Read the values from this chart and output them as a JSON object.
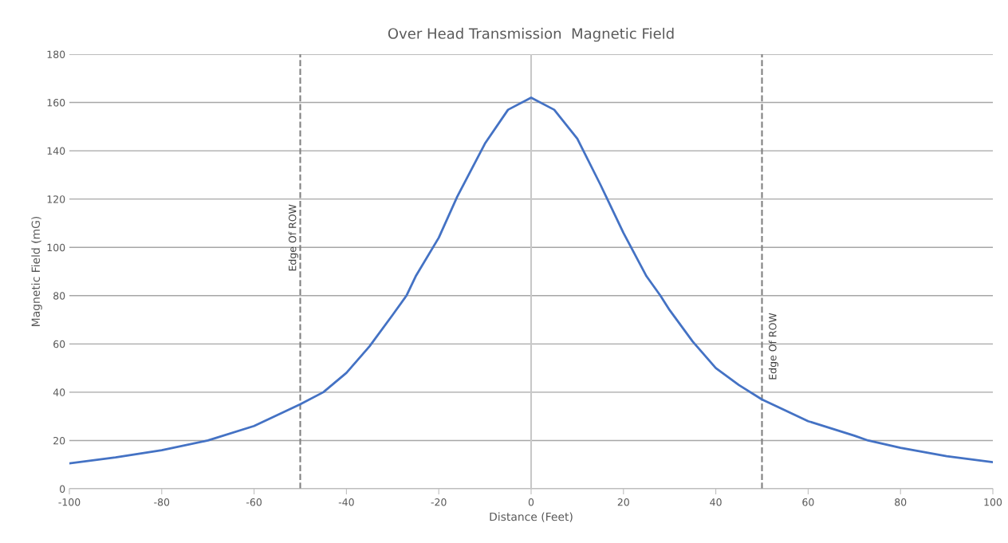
{
  "chart_data": {
    "type": "line",
    "title": "Over Head Transmission  Magnetic Field",
    "xlabel": "Distance (Feet)",
    "ylabel": "Magnetic Field (mG)",
    "x": [
      -100,
      -90,
      -80,
      -70,
      -60,
      -50,
      -45,
      -40,
      -35,
      -30,
      -27,
      -25,
      -20,
      -16,
      -10,
      -5,
      0,
      5,
      10,
      15,
      20,
      25,
      28,
      30,
      35,
      40,
      45,
      50,
      60,
      70,
      73,
      80,
      90,
      100
    ],
    "series": [
      {
        "color": "#4472c4",
        "values": [
          10.5,
          13,
          16,
          20,
          26,
          35,
          40,
          48,
          59,
          72,
          80,
          88,
          104,
          121,
          143,
          157,
          162,
          157,
          145,
          126,
          106,
          88,
          80,
          74,
          61,
          50,
          43,
          37,
          28,
          22,
          20,
          17,
          13.5,
          11
        ]
      }
    ],
    "xlim": [
      -100,
      100
    ],
    "xticks": [
      -100,
      -80,
      -60,
      -40,
      -20,
      0,
      20,
      40,
      60,
      80,
      100
    ],
    "ylim": [
      0,
      180
    ],
    "yticks": [
      0,
      20,
      40,
      60,
      80,
      100,
      120,
      140,
      160,
      180
    ],
    "grid": "y",
    "legend": false,
    "marker": "none",
    "line_style": "solid",
    "ref_lines": [
      {
        "axis": "x",
        "value": -50,
        "label": "Edge Of ROW",
        "color": "#808080",
        "line_style": "dashed"
      },
      {
        "axis": "x",
        "value": 50,
        "label": "Edge Of ROW",
        "color": "#808080",
        "line_style": "dashed"
      },
      {
        "axis": "x",
        "value": 0,
        "color": "#c8c8c8",
        "line_style": "solid"
      }
    ]
  }
}
